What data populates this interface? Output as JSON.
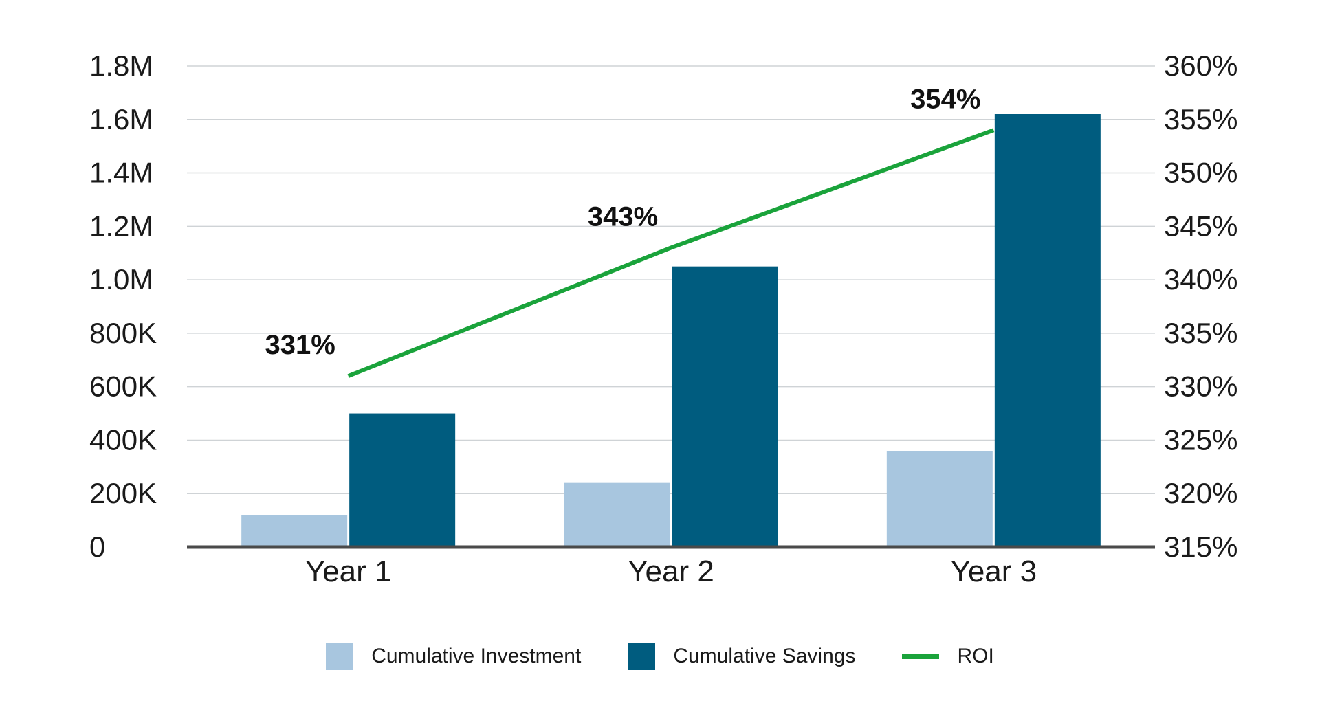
{
  "chart_data": {
    "type": "bar",
    "title": "",
    "categories": [
      "Year 1",
      "Year 2",
      "Year 3"
    ],
    "series": [
      {
        "name": "Cumulative Investment",
        "type": "bar",
        "axis": "left",
        "color": "#a8c6df",
        "values": [
          120000,
          240000,
          360000
        ]
      },
      {
        "name": "Cumulative Savings",
        "type": "bar",
        "axis": "left",
        "color": "#005c7f",
        "values": [
          500000,
          1050000,
          1620000
        ]
      },
      {
        "name": "ROI",
        "type": "line",
        "axis": "right",
        "color": "#1aa33b",
        "values": [
          331,
          343,
          354
        ],
        "data_labels": [
          "331%",
          "343%",
          "354%"
        ]
      }
    ],
    "y_left": {
      "ylim": [
        0,
        1800000
      ],
      "ticks": [
        0,
        200000,
        400000,
        600000,
        800000,
        1000000,
        1200000,
        1400000,
        1600000,
        1800000
      ],
      "tick_labels": [
        "0",
        "200K",
        "400K",
        "600K",
        "800K",
        "1.0M",
        "1.2M",
        "1.4M",
        "1.6M",
        "1.8M"
      ]
    },
    "y_right": {
      "ylim": [
        315,
        360
      ],
      "ticks": [
        315,
        320,
        325,
        330,
        335,
        340,
        345,
        350,
        355,
        360
      ],
      "tick_labels": [
        "315%",
        "320%",
        "325%",
        "330%",
        "335%",
        "340%",
        "345%",
        "350%",
        "355%",
        "360%"
      ]
    },
    "grid": true,
    "legend_position": "bottom"
  }
}
